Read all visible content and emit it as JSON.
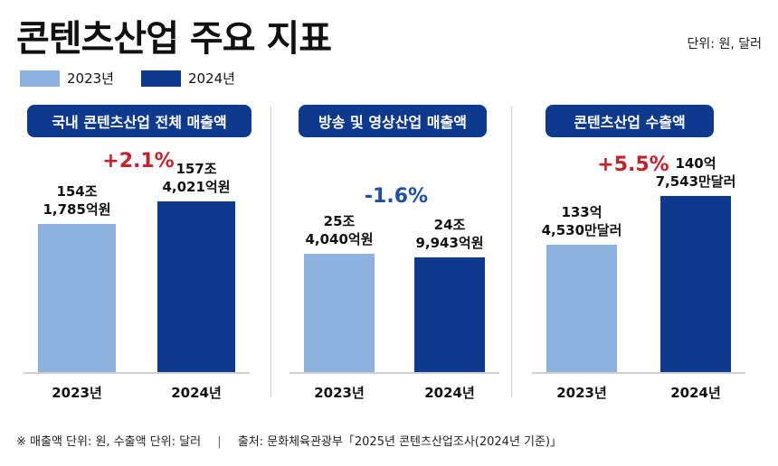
{
  "header": {
    "title": "콘텐츠산업 주요 지표",
    "unit": "단위: 원, 달러"
  },
  "legend": [
    {
      "label": "2023년",
      "color": "#8db2e0"
    },
    {
      "label": "2024년",
      "color": "#0d3a8c"
    }
  ],
  "chart_data": [
    {
      "type": "bar",
      "title": "국내 콘텐츠산업 전체 매출액",
      "categories": [
        "2023년",
        "2024년"
      ],
      "values": [
        1541785,
        1574021
      ],
      "value_labels": [
        "154조\n1,785억원",
        "157조\n4,021억원"
      ],
      "change": "+2.1%",
      "change_direction": "up"
    },
    {
      "type": "bar",
      "title": "방송 및 영상산업 매출액",
      "categories": [
        "2023년",
        "2024년"
      ],
      "values": [
        254040,
        249943
      ],
      "value_labels": [
        "25조\n4,040억원",
        "24조\n9,943억원"
      ],
      "change": "-1.6%",
      "change_direction": "down"
    },
    {
      "type": "bar",
      "title": "콘텐츠산업 수출액",
      "categories": [
        "2023년",
        "2024년"
      ],
      "values": [
        1334530,
        1407543
      ],
      "value_labels": [
        "133억\n4,530만달러",
        "140억\n7,543만달러"
      ],
      "change": "+5.5%",
      "change_direction": "up"
    }
  ],
  "footnote": {
    "left": "※ 매출액 단위: 원, 수출액 단위: 달러",
    "separator": "|",
    "right": "출처: 문화체육관광부「2025년 콘텐츠산업조사(2024년 기준)」"
  },
  "colors": {
    "y2023": "#8db2e0",
    "y2024": "#0d3a8c",
    "up": "#c8202b",
    "down": "#1d4fa6"
  }
}
